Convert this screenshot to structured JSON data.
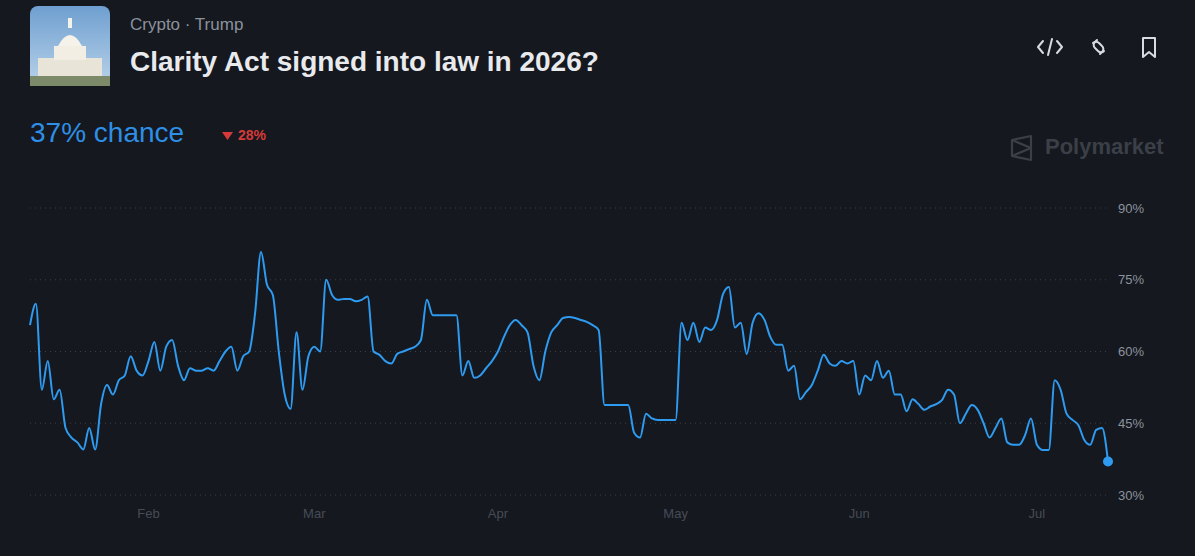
{
  "header": {
    "breadcrumb": "Crypto · Trump",
    "headline": "37% chance",
    "change": "28%",
    "watermark": "Polymarket"
  },
  "chart_data": {
    "type": "line",
    "title": "Clarity Act signed into law in 2026?",
    "categories": [
      null,
      null,
      null,
      null,
      null,
      null,
      null,
      null,
      null,
      null,
      null,
      null,
      null,
      null,
      null,
      null,
      null,
      null,
      null,
      null,
      "Feb",
      null,
      null,
      null,
      null,
      null,
      null,
      null,
      null,
      null,
      null,
      null,
      null,
      null,
      null,
      null,
      null,
      null,
      null,
      null,
      null,
      null,
      null,
      null,
      null,
      null,
      null,
      null,
      "Mar",
      null,
      null,
      null,
      null,
      null,
      null,
      null,
      null,
      null,
      null,
      null,
      null,
      null,
      null,
      null,
      null,
      null,
      null,
      null,
      null,
      null,
      null,
      null,
      null,
      null,
      null,
      null,
      null,
      null,
      null,
      "Apr",
      null,
      null,
      null,
      null,
      null,
      null,
      null,
      null,
      null,
      null,
      null,
      null,
      null,
      null,
      null,
      null,
      null,
      null,
      null,
      null,
      null,
      null,
      null,
      null,
      null,
      null,
      null,
      null,
      null,
      "May",
      null,
      null,
      null,
      null,
      null,
      null,
      null,
      null,
      null,
      null,
      null,
      null,
      null,
      null,
      null,
      null,
      null,
      null,
      null,
      null,
      null,
      null,
      null,
      null,
      null,
      null,
      null,
      null,
      null,
      null,
      "Jun",
      null,
      null,
      null,
      null,
      null,
      null,
      null,
      null,
      null,
      null,
      null,
      null,
      null,
      null,
      null,
      null,
      null,
      null,
      null,
      null,
      null,
      null,
      null,
      null,
      null,
      null,
      null,
      null,
      null,
      "Jul",
      null,
      null,
      null,
      null,
      null,
      null,
      null,
      null,
      null,
      null,
      null,
      null
    ],
    "values": [
      65.5,
      70,
      52,
      58,
      50,
      52,
      44,
      42,
      41,
      39.5,
      44,
      39.5,
      49,
      53,
      51,
      54,
      55,
      59,
      56,
      55,
      58,
      62,
      56,
      61,
      62.4,
      57,
      54,
      56.5,
      56,
      56,
      56.5,
      56,
      58,
      60,
      61,
      56,
      59,
      60,
      68,
      80.8,
      74,
      71.8,
      60,
      51,
      48,
      64,
      52,
      59,
      61,
      60,
      75,
      71.8,
      70.8,
      71,
      71,
      70.5,
      70.8,
      71.5,
      60,
      59.3,
      58,
      57.5,
      59.5,
      60,
      60.5,
      61,
      62.4,
      70.8,
      67.6,
      67.6,
      67.6,
      67.6,
      67.6,
      55,
      58,
      54.5,
      55,
      56.5,
      58,
      60,
      63,
      65.5,
      66.6,
      65.5,
      64,
      57,
      54,
      60,
      64,
      65.5,
      67,
      67.2,
      67,
      66.6,
      66.2,
      65.5,
      64.5,
      48.8,
      48.8,
      48.8,
      48.8,
      48.8,
      43,
      42,
      47,
      46,
      45.7,
      45.7,
      45.7,
      45.7,
      66,
      62.4,
      66,
      62,
      65,
      64.5,
      66.6,
      72,
      73.5,
      65,
      66,
      59.5,
      66,
      68,
      66.6,
      63,
      61.4,
      61.4,
      56,
      57,
      50,
      51.5,
      53,
      56,
      59.3,
      57.5,
      57,
      58,
      57.5,
      58,
      51,
      55,
      54,
      58,
      54.5,
      56,
      51,
      51,
      47.5,
      50,
      49,
      47.8,
      48.5,
      49,
      49.9,
      52,
      51,
      45,
      47,
      48.8,
      47.8,
      45,
      42,
      44,
      46,
      41,
      40.5,
      40.5,
      42.5,
      46,
      40.5,
      39.4,
      39.4,
      54,
      52,
      47,
      45.7,
      44.6,
      41.5,
      40.5,
      43.6,
      44,
      37
    ],
    "color": "#2e9bf0",
    "ylim": [
      30,
      90
    ],
    "yticks": [
      {
        "value": 30,
        "label": "30%"
      },
      {
        "value": 45,
        "label": "45%"
      },
      {
        "value": 60,
        "label": "60%"
      },
      {
        "value": 75,
        "label": "75%"
      },
      {
        "value": 90,
        "label": "90%"
      }
    ],
    "grid": true
  }
}
